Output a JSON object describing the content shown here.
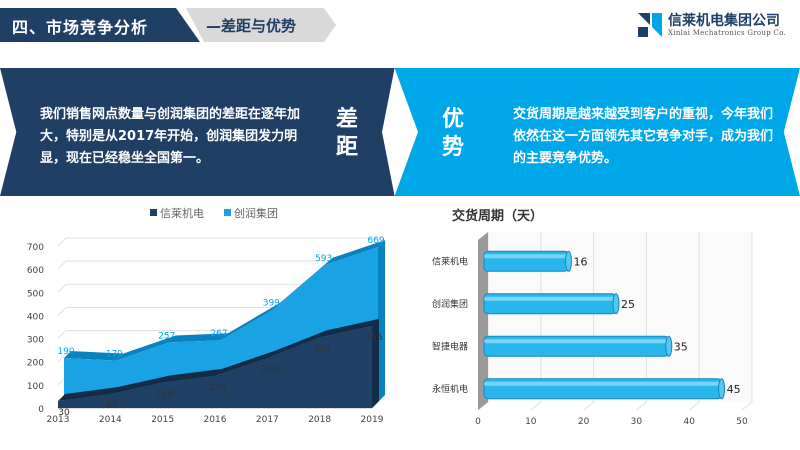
{
  "header": {
    "section_title": "四、市场竞争分析",
    "section_subtitle": "—差距与优势",
    "company_name": "信莱机电集团公司",
    "company_name_en": "Xinlai Mechatronics Group Co."
  },
  "banner": {
    "left_label": "差距",
    "left_text": "我们销售网点数量与创润集团的差距在逐年加大，特别是从2017年开始，创润集团发力明显，现在已经稳坐全国第一。",
    "right_label": "优势",
    "right_text": "交货周期是越来越受到客户的重视，今年我们依然在这一方面领先其它竞争对手，成为我们的主要竞争优势。"
  },
  "colors": {
    "dark_navy": "#1f3f64",
    "cyan": "#00a7e8",
    "area_light": "#1aa3e4",
    "bar_blue": "#29b6ec"
  },
  "chart_data": [
    {
      "type": "area",
      "title": "",
      "categories": [
        "2013",
        "2014",
        "2015",
        "2016",
        "2017",
        "2018",
        "2019"
      ],
      "series": [
        {
          "name": "信莱机电",
          "values": [
            30,
            60,
            110,
            139,
            216,
            305,
            355
          ]
        },
        {
          "name": "创润集团",
          "values": [
            190,
            179,
            257,
            267,
            399,
            593,
            669
          ]
        }
      ],
      "ylim": [
        0,
        700
      ],
      "yticks": [
        0,
        100,
        200,
        300,
        400,
        500,
        600,
        700
      ],
      "legend": "top"
    },
    {
      "type": "bar",
      "orientation": "horizontal",
      "title": "交货周期（天）",
      "categories": [
        "信莱机电",
        "创润集团",
        "智捷电器",
        "永恒机电"
      ],
      "values": [
        16,
        25,
        35,
        45
      ],
      "xlim": [
        0,
        50
      ],
      "xticks": [
        0,
        10,
        20,
        30,
        40,
        50
      ]
    }
  ]
}
